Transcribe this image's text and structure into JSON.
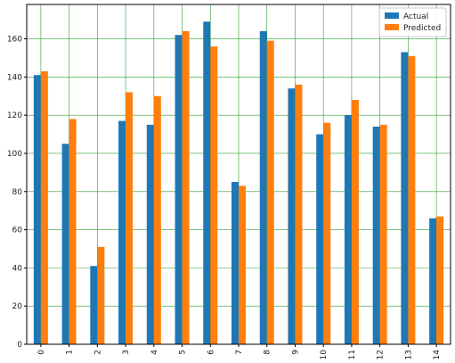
{
  "chart_data": {
    "type": "bar",
    "categories": [
      "0",
      "1",
      "2",
      "3",
      "4",
      "5",
      "6",
      "7",
      "8",
      "9",
      "10",
      "11",
      "12",
      "13",
      "14"
    ],
    "series": [
      {
        "name": "Actual",
        "color": "#1f77b4",
        "values": [
          141,
          105,
          41,
          117,
          115,
          162,
          169,
          85,
          164,
          134,
          110,
          120,
          114,
          153,
          66
        ]
      },
      {
        "name": "Predicted",
        "color": "#ff7f0e",
        "values": [
          143,
          118,
          51,
          132,
          130,
          164,
          156,
          83,
          159,
          136,
          116,
          128,
          115,
          151,
          67
        ]
      }
    ],
    "yticks": [
      0,
      20,
      40,
      60,
      80,
      100,
      120,
      140,
      160
    ],
    "ylim": [
      0,
      178
    ],
    "grid": true,
    "grid_color": "#2ca02c",
    "legend_position": "top-right",
    "xtick_rotation": "vertical"
  }
}
